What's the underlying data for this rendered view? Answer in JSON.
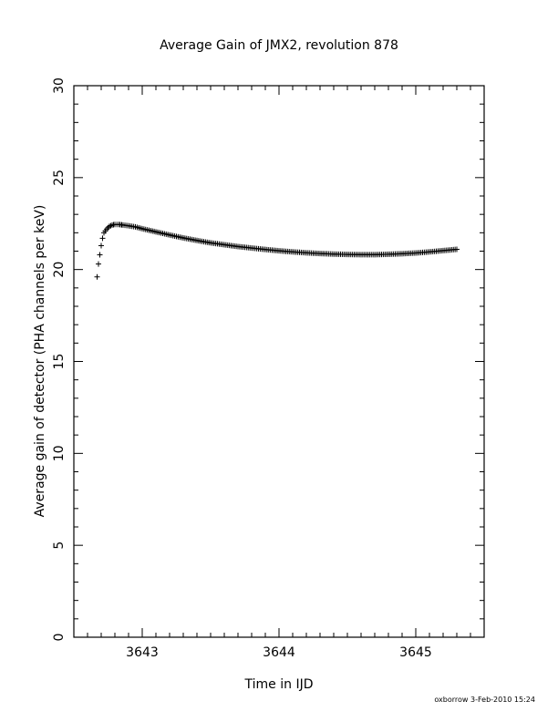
{
  "chart_data": {
    "type": "scatter",
    "title": "Average Gain of JMX2, revolution 878",
    "xlabel": "Time in IJD",
    "ylabel": "Average gain of detector (PHA channels per keV)",
    "xlim": [
      3642.5,
      3645.5
    ],
    "ylim": [
      0,
      30
    ],
    "x_ticks": [
      3643,
      3644,
      3645
    ],
    "x_tick_labels": [
      "3643",
      "3644",
      "3645"
    ],
    "y_ticks": [
      0,
      5,
      10,
      15,
      20,
      25,
      30
    ],
    "y_tick_labels": [
      "0",
      "5",
      "10",
      "15",
      "20",
      "25",
      "30"
    ],
    "marker": "plus",
    "grid": false,
    "legend": "none",
    "series": [
      {
        "x": [
          3642.67,
          3642.68,
          3642.69,
          3642.7,
          3642.71,
          3642.72,
          3642.74,
          3642.76,
          3642.78,
          3642.8,
          3642.83,
          3642.86,
          3642.9,
          3642.95,
          3643.0,
          3643.1,
          3643.2,
          3643.3,
          3643.4,
          3643.5,
          3643.6,
          3643.7,
          3643.8,
          3643.9,
          3644.0,
          3644.1,
          3644.2,
          3644.3,
          3644.4,
          3644.5,
          3644.6,
          3644.7,
          3644.8,
          3644.9,
          3645.0,
          3645.1,
          3645.2,
          3645.3
        ],
        "y": [
          19.6,
          20.3,
          20.8,
          21.3,
          21.7,
          22.0,
          22.2,
          22.35,
          22.42,
          22.45,
          22.45,
          22.42,
          22.38,
          22.32,
          22.22,
          22.05,
          21.88,
          21.72,
          21.58,
          21.45,
          21.35,
          21.25,
          21.17,
          21.09,
          21.02,
          20.96,
          20.91,
          20.87,
          20.84,
          20.82,
          20.81,
          20.81,
          20.83,
          20.86,
          20.9,
          20.96,
          21.03,
          21.1
        ]
      }
    ]
  },
  "footer": {
    "credit": "oxborrow  3-Feb-2010 15:24"
  }
}
